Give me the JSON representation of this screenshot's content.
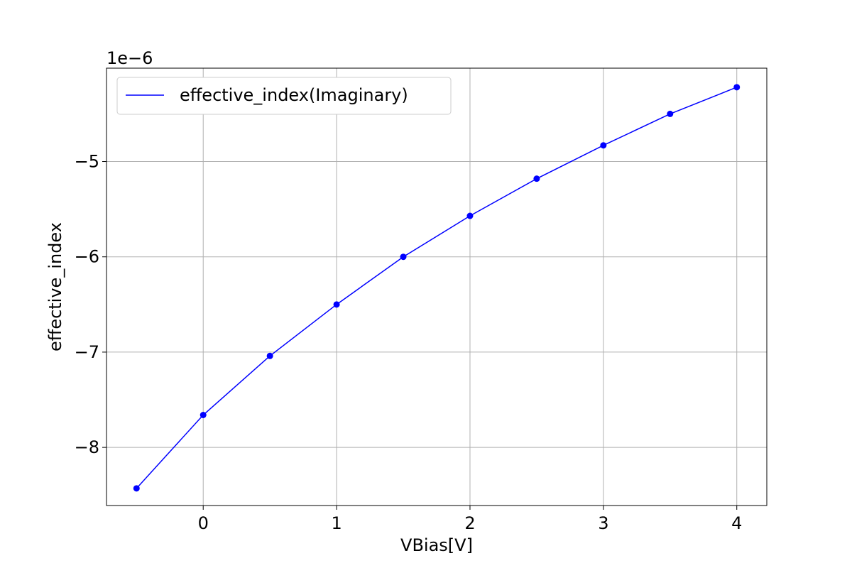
{
  "chart_data": {
    "type": "line",
    "xlabel": "VBias[V]",
    "ylabel": "effective_index",
    "y_offset_text": "1e−6",
    "x": [
      -0.5,
      0,
      0.5,
      1,
      1.5,
      2,
      2.5,
      3,
      3.5,
      4
    ],
    "series": [
      {
        "name": "effective_index(Imaginary)",
        "color": "#0000ff",
        "marker": "circle",
        "values": [
          -8.43,
          -7.66,
          -7.04,
          -6.5,
          -6.0,
          -5.57,
          -5.18,
          -4.83,
          -4.5,
          -4.22
        ]
      }
    ],
    "xlim": [
      -0.725,
      4.225
    ],
    "ylim": [
      -8.61,
      -4.02
    ],
    "x_ticks": [
      0,
      1,
      2,
      3,
      4
    ],
    "x_tick_labels": [
      "0",
      "1",
      "2",
      "3",
      "4"
    ],
    "y_ticks": [
      -8,
      -7,
      -6,
      -5
    ],
    "y_tick_labels": [
      "−8",
      "−7",
      "−6",
      "−5"
    ],
    "grid": true,
    "legend_position": "upper-left"
  }
}
